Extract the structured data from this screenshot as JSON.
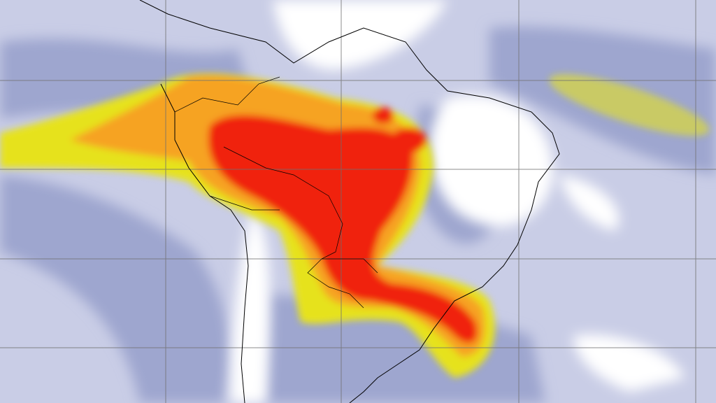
{
  "map": {
    "region": "South America",
    "colors": {
      "background": "#c9cde6",
      "low_band": "#9ea6cf",
      "clear": "#ffffff",
      "moderate": "#e6e21e",
      "high": "#f6a324",
      "very_high": "#f0200c",
      "coastline": "#000000",
      "gridline": "#707070"
    }
  }
}
